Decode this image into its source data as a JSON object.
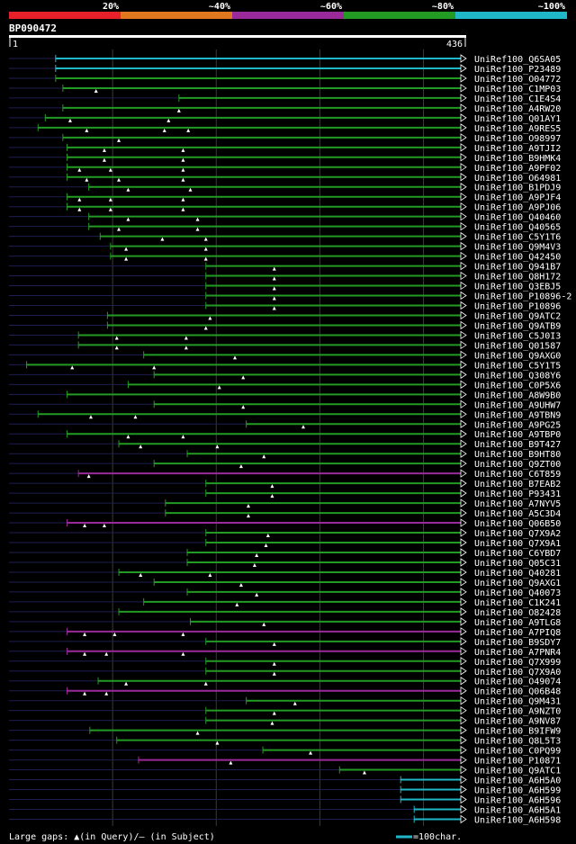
{
  "chart_data": {
    "type": "alignment-overview",
    "query": {
      "name": "BP090472",
      "start": 1,
      "end": 436
    },
    "identity_legend": [
      {
        "label": "20%",
        "color": "#e8202a"
      },
      {
        "label": "~40%",
        "color": "#e07820"
      },
      {
        "label": "~60%",
        "color": "#9a2a9a"
      },
      {
        "label": "~80%",
        "color": "#239a23"
      },
      {
        "label": "~100%",
        "color": "#20b8c8"
      }
    ],
    "footer": {
      "gaps": "Large gaps: ▲(in Query)/– (in Subject)",
      "scale": "=100char."
    },
    "hits": [
      {
        "name": "UniRef100_Q6SA05",
        "start": 45,
        "color": "#20b8c8",
        "gaps": []
      },
      {
        "name": "UniRef100_P23489",
        "start": 45,
        "color": "#20b8c8",
        "gaps": []
      },
      {
        "name": "UniRef100_O04772",
        "start": 45,
        "color": "#239a23",
        "gaps": []
      },
      {
        "name": "UniRef100_C1MP03",
        "start": 52,
        "color": "#239a23",
        "gaps": [
          84
        ]
      },
      {
        "name": "UniRef100_C1E4S4",
        "start": 164,
        "color": "#239a23",
        "gaps": []
      },
      {
        "name": "UniRef100_A4RW20",
        "start": 52,
        "color": "#239a23",
        "gaps": [
          164
        ]
      },
      {
        "name": "UniRef100_Q01AY1",
        "start": 35,
        "color": "#239a23",
        "gaps": [
          59,
          154
        ]
      },
      {
        "name": "UniRef100_A9RES5",
        "start": 28,
        "color": "#239a23",
        "gaps": [
          75,
          150,
          173
        ]
      },
      {
        "name": "UniRef100_O98997",
        "start": 52,
        "color": "#239a23",
        "gaps": [
          106
        ]
      },
      {
        "name": "UniRef100_A9TJI2",
        "start": 56,
        "color": "#239a23",
        "gaps": [
          92,
          168
        ]
      },
      {
        "name": "UniRef100_B9HMK4",
        "start": 56,
        "color": "#239a23",
        "gaps": [
          92,
          168
        ]
      },
      {
        "name": "UniRef100_A9PF02",
        "start": 56,
        "color": "#239a23",
        "gaps": [
          68,
          98,
          168
        ]
      },
      {
        "name": "UniRef100_O64981",
        "start": 56,
        "color": "#239a23",
        "gaps": [
          75,
          106,
          168
        ]
      },
      {
        "name": "UniRef100_B1PDJ9",
        "start": 77,
        "color": "#239a23",
        "gaps": [
          115,
          175
        ]
      },
      {
        "name": "UniRef100_A9PJF4",
        "start": 56,
        "color": "#239a23",
        "gaps": [
          68,
          98,
          168
        ]
      },
      {
        "name": "UniRef100_A9PJ06",
        "start": 56,
        "color": "#239a23",
        "gaps": [
          68,
          98,
          168
        ]
      },
      {
        "name": "UniRef100_Q40460",
        "start": 77,
        "color": "#239a23",
        "gaps": [
          115,
          182
        ]
      },
      {
        "name": "UniRef100_Q40565",
        "start": 77,
        "color": "#239a23",
        "gaps": [
          106,
          182
        ]
      },
      {
        "name": "UniRef100_C5Y1T6",
        "start": 88,
        "color": "#239a23",
        "gaps": [
          148,
          190
        ]
      },
      {
        "name": "UniRef100_Q9M4V3",
        "start": 98,
        "color": "#239a23",
        "gaps": [
          113,
          190
        ]
      },
      {
        "name": "UniRef100_Q42450",
        "start": 98,
        "color": "#239a23",
        "gaps": [
          113,
          190
        ]
      },
      {
        "name": "UniRef100_Q941B7",
        "start": 190,
        "color": "#239a23",
        "gaps": [
          256
        ]
      },
      {
        "name": "UniRef100_Q8H172",
        "start": 190,
        "color": "#239a23",
        "gaps": [
          256
        ]
      },
      {
        "name": "UniRef100_Q3EBJ5",
        "start": 190,
        "color": "#239a23",
        "gaps": [
          256
        ]
      },
      {
        "name": "UniRef100_P10896-2",
        "start": 190,
        "color": "#239a23",
        "gaps": [
          256
        ]
      },
      {
        "name": "UniRef100_P10896",
        "start": 190,
        "color": "#239a23",
        "gaps": [
          256
        ]
      },
      {
        "name": "UniRef100_Q9ATC2",
        "start": 95,
        "color": "#239a23",
        "gaps": [
          194
        ]
      },
      {
        "name": "UniRef100_Q9ATB9",
        "start": 95,
        "color": "#239a23",
        "gaps": [
          190
        ]
      },
      {
        "name": "UniRef100_C5J0I3",
        "start": 67,
        "color": "#239a23",
        "gaps": [
          104,
          171
        ]
      },
      {
        "name": "UniRef100_Q01587",
        "start": 67,
        "color": "#239a23",
        "gaps": [
          104,
          171
        ]
      },
      {
        "name": "UniRef100_Q9AXG0",
        "start": 130,
        "color": "#239a23",
        "gaps": [
          218
        ]
      },
      {
        "name": "UniRef100_C5Y1T5",
        "start": 17,
        "color": "#239a23",
        "gaps": [
          61,
          140
        ]
      },
      {
        "name": "UniRef100_Q308Y6",
        "start": 140,
        "color": "#239a23",
        "gaps": [
          226
        ]
      },
      {
        "name": "UniRef100_C0P5X6",
        "start": 115,
        "color": "#239a23",
        "gaps": [
          203
        ]
      },
      {
        "name": "UniRef100_A8W9B0",
        "start": 56,
        "color": "#239a23",
        "gaps": []
      },
      {
        "name": "UniRef100_A9UHW7",
        "start": 140,
        "color": "#239a23",
        "gaps": [
          226
        ]
      },
      {
        "name": "UniRef100_A9TBN9",
        "start": 28,
        "color": "#239a23",
        "gaps": [
          79,
          122
        ]
      },
      {
        "name": "UniRef100_A9PG25",
        "start": 229,
        "color": "#239a23",
        "gaps": [
          284
        ]
      },
      {
        "name": "UniRef100_A9TBP0",
        "start": 56,
        "color": "#239a23",
        "gaps": [
          115,
          168
        ]
      },
      {
        "name": "UniRef100_B9T427",
        "start": 106,
        "color": "#239a23",
        "gaps": [
          127,
          201
        ]
      },
      {
        "name": "UniRef100_B9HT80",
        "start": 172,
        "color": "#239a23",
        "gaps": [
          246
        ]
      },
      {
        "name": "UniRef100_Q9ZT00",
        "start": 140,
        "color": "#239a23",
        "gaps": [
          224
        ]
      },
      {
        "name": "UniRef100_C6T859",
        "start": 67,
        "color": "#9a2a9a",
        "gaps": [
          77
        ]
      },
      {
        "name": "UniRef100_B7EAB2",
        "start": 190,
        "color": "#239a23",
        "gaps": [
          254
        ]
      },
      {
        "name": "UniRef100_P93431",
        "start": 190,
        "color": "#239a23",
        "gaps": [
          254
        ]
      },
      {
        "name": "UniRef100_A7NYV5",
        "start": 151,
        "color": "#239a23",
        "gaps": [
          231
        ]
      },
      {
        "name": "UniRef100_A5C3D4",
        "start": 151,
        "color": "#239a23",
        "gaps": [
          231
        ]
      },
      {
        "name": "UniRef100_Q06B50",
        "start": 56,
        "color": "#9a2a9a",
        "gaps": [
          73,
          92
        ]
      },
      {
        "name": "UniRef100_Q7X9A2",
        "start": 190,
        "color": "#239a23",
        "gaps": [
          250
        ]
      },
      {
        "name": "UniRef100_Q7X9A1",
        "start": 190,
        "color": "#239a23",
        "gaps": [
          248
        ]
      },
      {
        "name": "UniRef100_C6YBD7",
        "start": 172,
        "color": "#239a23",
        "gaps": [
          239
        ]
      },
      {
        "name": "UniRef100_Q05C31",
        "start": 172,
        "color": "#239a23",
        "gaps": [
          237
        ]
      },
      {
        "name": "UniRef100_Q40281",
        "start": 106,
        "color": "#239a23",
        "gaps": [
          127,
          194
        ]
      },
      {
        "name": "UniRef100_Q9AXG1",
        "start": 140,
        "color": "#239a23",
        "gaps": [
          224
        ]
      },
      {
        "name": "UniRef100_Q40073",
        "start": 172,
        "color": "#239a23",
        "gaps": [
          239
        ]
      },
      {
        "name": "UniRef100_C1K241",
        "start": 130,
        "color": "#239a23",
        "gaps": [
          220
        ]
      },
      {
        "name": "UniRef100_O82428",
        "start": 106,
        "color": "#239a23",
        "gaps": []
      },
      {
        "name": "UniRef100_A9TLG8",
        "start": 175,
        "color": "#239a23",
        "gaps": [
          246
        ]
      },
      {
        "name": "UniRef100_A7PIQ8",
        "start": 56,
        "color": "#9a2a9a",
        "gaps": [
          73,
          102,
          168
        ]
      },
      {
        "name": "UniRef100_B9SDY7",
        "start": 190,
        "color": "#239a23",
        "gaps": [
          256
        ]
      },
      {
        "name": "UniRef100_A7PNR4",
        "start": 56,
        "color": "#9a2a9a",
        "gaps": [
          73,
          94,
          168
        ]
      },
      {
        "name": "UniRef100_Q7X999",
        "start": 190,
        "color": "#239a23",
        "gaps": [
          256
        ]
      },
      {
        "name": "UniRef100_Q7X9A0",
        "start": 190,
        "color": "#239a23",
        "gaps": [
          256
        ]
      },
      {
        "name": "UniRef100_O49074",
        "start": 86,
        "color": "#239a23",
        "gaps": [
          113,
          190
        ]
      },
      {
        "name": "UniRef100_Q06B48",
        "start": 56,
        "color": "#9a2a9a",
        "gaps": [
          73,
          94
        ]
      },
      {
        "name": "UniRef100_Q9M431",
        "start": 229,
        "color": "#239a23",
        "gaps": [
          276
        ]
      },
      {
        "name": "UniRef100_A9NZT0",
        "start": 190,
        "color": "#239a23",
        "gaps": [
          256
        ]
      },
      {
        "name": "UniRef100_A9NV87",
        "start": 190,
        "color": "#239a23",
        "gaps": [
          254
        ]
      },
      {
        "name": "UniRef100_B9IFW9",
        "start": 78,
        "color": "#239a23",
        "gaps": [
          182
        ]
      },
      {
        "name": "UniRef100_Q8L5T3",
        "start": 104,
        "color": "#239a23",
        "gaps": [
          201
        ]
      },
      {
        "name": "UniRef100_C0PQ99",
        "start": 245,
        "color": "#239a23",
        "gaps": [
          291
        ]
      },
      {
        "name": "UniRef100_P10871",
        "start": 125,
        "color": "#9a2a9a",
        "gaps": [
          214
        ]
      },
      {
        "name": "UniRef100_Q9ATC1",
        "start": 319,
        "color": "#239a23",
        "gaps": [
          343
        ]
      },
      {
        "name": "UniRef100_A6H5A0",
        "start": 378,
        "color": "#20b8c8",
        "gaps": []
      },
      {
        "name": "UniRef100_A6H599",
        "start": 378,
        "color": "#20b8c8",
        "gaps": []
      },
      {
        "name": "UniRef100_A6H596",
        "start": 378,
        "color": "#20b8c8",
        "gaps": []
      },
      {
        "name": "UniRef100_A6H5A1",
        "start": 391,
        "color": "#20b8c8",
        "gaps": []
      },
      {
        "name": "UniRef100_A6H598",
        "start": 391,
        "color": "#20b8c8",
        "gaps": []
      }
    ]
  }
}
